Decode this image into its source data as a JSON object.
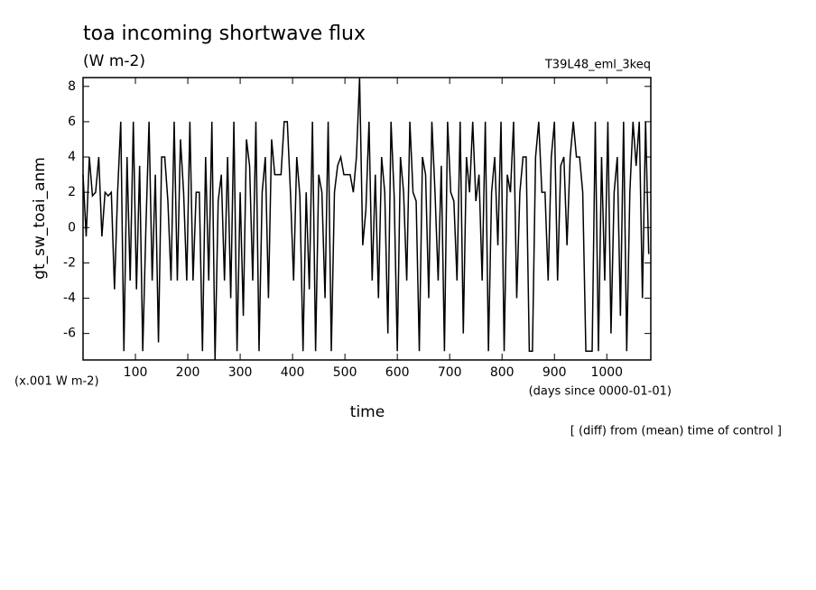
{
  "chart_data": {
    "type": "line",
    "title": "toa incoming shortwave flux",
    "subtitle": "(W m-2)",
    "run_label": "T39L48_eml_3keq",
    "y_label": "gt_sw_toai_anm",
    "y_unit_note": "(x.001 W m-2)",
    "x_unit_note": "(days since 0000-01-01)",
    "x_label": "time",
    "footnote": "[ (diff) from (mean) time of control ]",
    "xlim": [
      0,
      1084
    ],
    "ylim": [
      -7.5,
      8.5
    ],
    "xticks": [
      100,
      200,
      300,
      400,
      500,
      600,
      700,
      800,
      900,
      1000
    ],
    "yticks": [
      -6,
      -4,
      -2,
      0,
      2,
      4,
      6,
      8
    ],
    "x": [
      0,
      6,
      12,
      18,
      24,
      30,
      36,
      42,
      48,
      54,
      60,
      66,
      72,
      78,
      84,
      90,
      96,
      102,
      108,
      114,
      120,
      126,
      132,
      138,
      144,
      150,
      156,
      162,
      168,
      174,
      180,
      186,
      192,
      198,
      204,
      210,
      216,
      222,
      228,
      234,
      240,
      246,
      252,
      258,
      264,
      270,
      276,
      282,
      288,
      294,
      300,
      306,
      312,
      318,
      324,
      330,
      336,
      342,
      348,
      354,
      360,
      366,
      372,
      378,
      384,
      390,
      396,
      402,
      408,
      414,
      420,
      426,
      432,
      438,
      444,
      450,
      456,
      462,
      468,
      474,
      480,
      486,
      492,
      498,
      504,
      510,
      516,
      522,
      528,
      534,
      540,
      546,
      552,
      558,
      564,
      570,
      576,
      582,
      588,
      594,
      600,
      606,
      612,
      618,
      624,
      630,
      636,
      642,
      648,
      654,
      660,
      666,
      672,
      678,
      684,
      690,
      696,
      702,
      708,
      714,
      720,
      726,
      732,
      738,
      744,
      750,
      756,
      762,
      768,
      774,
      780,
      786,
      792,
      798,
      804,
      810,
      816,
      822,
      828,
      834,
      840,
      846,
      852,
      858,
      864,
      870,
      876,
      882,
      888,
      894,
      900,
      906,
      912,
      918,
      924,
      930,
      936,
      942,
      948,
      954,
      960,
      966,
      972,
      978,
      984,
      990,
      996,
      1002,
      1008,
      1014,
      1020,
      1026,
      1032,
      1038,
      1044,
      1050,
      1056,
      1062,
      1068,
      1074,
      1080
    ],
    "series": [
      {
        "name": "gt_sw_toai_anm",
        "color": "#000000",
        "values": [
          3,
          -0.5,
          4,
          1.8,
          2,
          4,
          -0.5,
          2,
          1.8,
          2,
          -3.5,
          2,
          6,
          -7,
          4,
          -3,
          6,
          -3.5,
          3.5,
          -7,
          0,
          6,
          -3,
          3,
          -6.5,
          4,
          4,
          1.5,
          -3,
          6,
          -3,
          5,
          2,
          -3,
          6,
          -3,
          2,
          2,
          -7,
          4,
          -3,
          6,
          -7.5,
          1.5,
          3,
          -3,
          4,
          -4,
          6,
          -7,
          2,
          -5,
          5,
          3.5,
          -3,
          6,
          -7,
          2,
          4,
          -4,
          5,
          3,
          3,
          3,
          6,
          6,
          2,
          -3,
          4,
          1.8,
          -7,
          2,
          -3.5,
          6,
          -7,
          3,
          2,
          -4,
          6,
          -7,
          2,
          3.5,
          4,
          3,
          3,
          3,
          2,
          4,
          8.5,
          -1,
          1,
          6,
          -3,
          3,
          -4,
          4,
          2,
          -6,
          6,
          1.8,
          -7,
          4,
          2,
          -3,
          6,
          2,
          1.5,
          -7,
          4,
          3,
          -4,
          6,
          2,
          -3,
          3.5,
          -7,
          6,
          2,
          1.5,
          -3,
          6,
          -6,
          4,
          2,
          6,
          1.5,
          3,
          -3,
          6,
          -7,
          2,
          4,
          -1,
          6,
          -7,
          3,
          2,
          6,
          -4,
          2,
          4,
          4,
          -7,
          -7,
          4,
          6,
          2,
          2,
          -3,
          4,
          6,
          -3,
          3.5,
          4,
          -1,
          4,
          6,
          4,
          4,
          2,
          -7,
          -7,
          -7,
          6,
          -7,
          4,
          -3,
          6,
          -6,
          2,
          4,
          -5,
          6,
          -7,
          2,
          6,
          3.5,
          6,
          -4,
          6,
          -1.5
        ]
      }
    ]
  }
}
